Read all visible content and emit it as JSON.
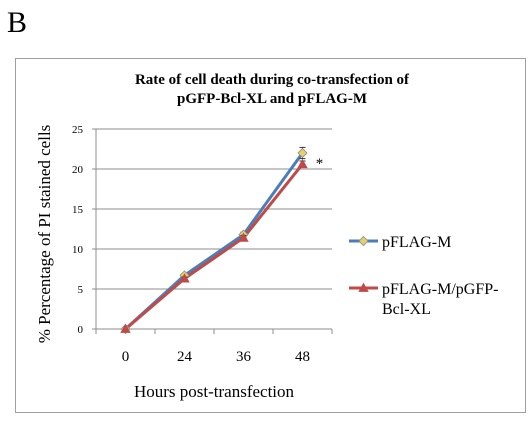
{
  "panel_label": "B",
  "chart_data": {
    "type": "line",
    "title_lines": [
      "Rate of cell death during co-transfection of",
      "pGFP-Bcl-XL and pFLAG-M"
    ],
    "xlabel": "Hours post-transfection",
    "ylabel": "% Percentage  of PI stained cells",
    "categories": [
      "0",
      "24",
      "36",
      "48"
    ],
    "ylim": [
      0,
      25
    ],
    "yticks": [
      "0",
      "5",
      "10",
      "15",
      "20",
      "25"
    ],
    "grid": true,
    "legend_position": "right",
    "series": [
      {
        "name": "pFLAG-M",
        "name_lines": [
          "pFLAG-M"
        ],
        "values": [
          0,
          6.7,
          11.8,
          22.0
        ],
        "error": [
          0,
          0.2,
          0.3,
          0.7
        ],
        "color": "#4a7ebb",
        "marker": "diamond",
        "marker_color": "#e8d06a"
      },
      {
        "name": "pFLAG-M/pGFP-Bcl-XL",
        "name_lines": [
          "pFLAG-M/pGFP-",
          "Bcl-XL"
        ],
        "values": [
          0,
          6.3,
          11.4,
          20.6
        ],
        "error": [
          0,
          0.2,
          0.3,
          0.4
        ],
        "color": "#be4b48",
        "marker": "triangle",
        "marker_color": "#be4b48"
      }
    ],
    "annotations": [
      "*"
    ]
  }
}
